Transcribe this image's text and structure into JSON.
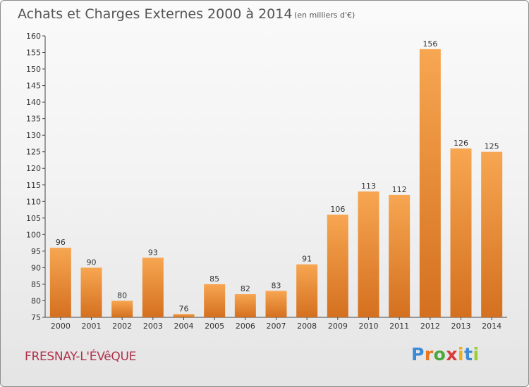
{
  "chart_data": {
    "type": "bar",
    "title": "Achats et Charges Externes 2000 à 2014",
    "subtitle": "(en milliers d'€)",
    "categories": [
      "2000",
      "2001",
      "2002",
      "2003",
      "2004",
      "2005",
      "2006",
      "2007",
      "2008",
      "2009",
      "2010",
      "2011",
      "2012",
      "2013",
      "2014"
    ],
    "values": [
      96,
      90,
      80,
      93,
      76,
      85,
      82,
      83,
      91,
      106,
      113,
      112,
      156,
      126,
      125
    ],
    "ylim": [
      75,
      160
    ],
    "yticks": [
      75,
      80,
      85,
      90,
      95,
      100,
      105,
      110,
      115,
      120,
      125,
      130,
      135,
      140,
      145,
      150,
      155,
      160
    ],
    "grid": false,
    "bar_color_top": "#f7a651",
    "bar_color_bottom": "#d4701f"
  },
  "location_label": "FRESNAY-L'ÉVêQUE",
  "brand": {
    "letters": [
      "P",
      "r",
      "o",
      "x",
      "i",
      "t",
      "i"
    ],
    "colors": [
      "#3a8ad6",
      "#e87722",
      "#4aa83c",
      "#d83a3a",
      "#e8b020",
      "#3a8ad6",
      "#9acd32"
    ]
  }
}
